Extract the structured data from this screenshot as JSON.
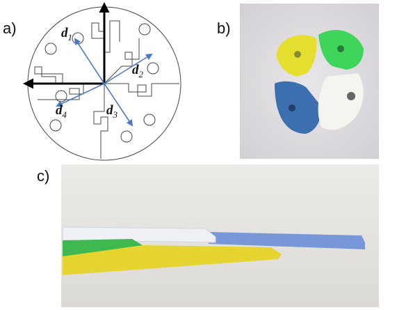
{
  "panels": [
    {
      "label": "a)",
      "vectors": [
        {
          "symbol": "d",
          "subscript": "1"
        },
        {
          "symbol": "d",
          "subscript": "2"
        },
        {
          "symbol": "d",
          "subscript": "3"
        },
        {
          "symbol": "d",
          "subscript": "4"
        }
      ]
    },
    {
      "label": "b)"
    },
    {
      "label": "c)"
    }
  ]
}
